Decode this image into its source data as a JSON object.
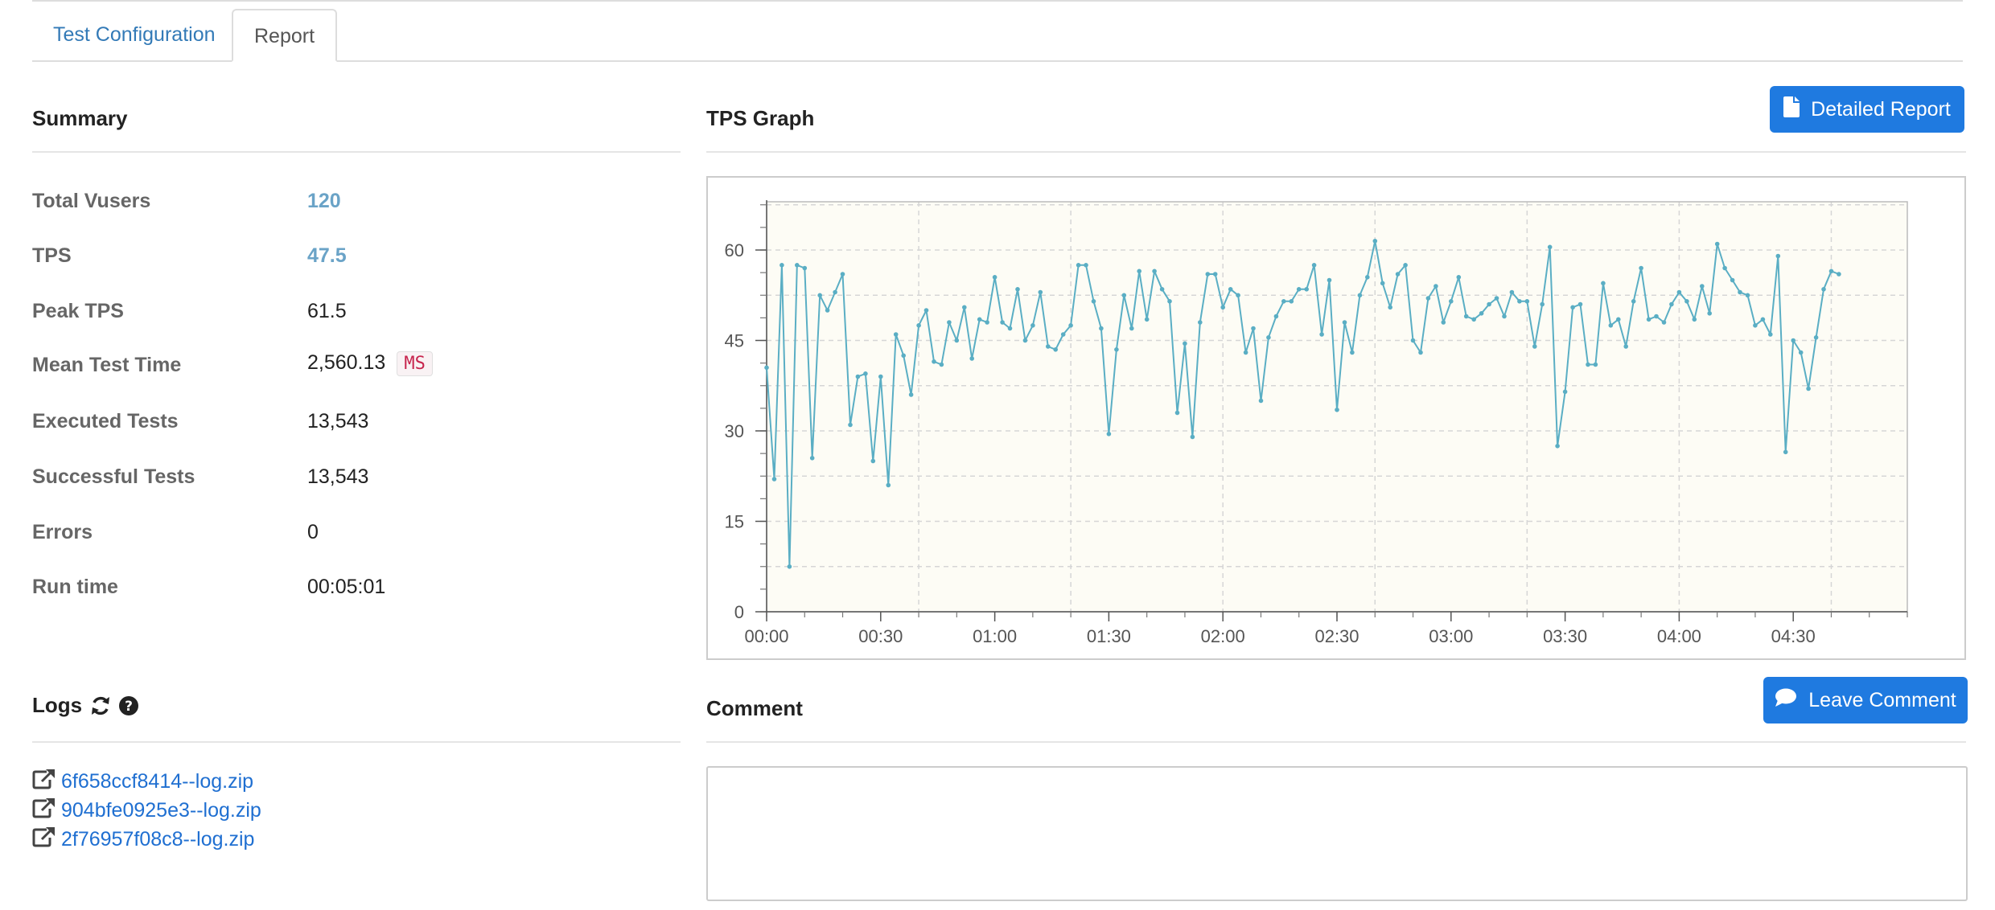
{
  "tabs": {
    "config_label": "Test Configuration",
    "report_label": "Report"
  },
  "summary": {
    "title": "Summary",
    "total_vusers_label": "Total Vusers",
    "total_vusers": "120",
    "tps_label": "TPS",
    "tps": "47.5",
    "peak_tps_label": "Peak TPS",
    "peak_tps": "61.5",
    "mean_test_time_label": "Mean Test Time",
    "mean_test_time": "2,560.13",
    "mean_test_time_unit": "MS",
    "executed_tests_label": "Executed Tests",
    "executed_tests": "13,543",
    "successful_tests_label": "Successful Tests",
    "successful_tests": "13,543",
    "errors_label": "Errors",
    "errors": "0",
    "run_time_label": "Run time",
    "run_time": "00:05:01"
  },
  "tps_graph": {
    "title": "TPS Graph",
    "detailed_report_label": "Detailed Report"
  },
  "logs": {
    "title": "Logs",
    "files": [
      "6f658ccf8414--log.zip",
      "904bfe0925e3--log.zip",
      "2f76957f08c8--log.zip"
    ]
  },
  "comment": {
    "title": "Comment",
    "leave_comment_label": "Leave Comment",
    "value": ""
  },
  "colors": {
    "accent": "#1f7ae0",
    "link": "#337ab7",
    "highlight_value": "#6aa3c7",
    "series_line": "#5aaec4",
    "plot_background": "#fdfcf5"
  },
  "icons": {
    "detailed_report": "file-icon",
    "leave_comment": "speech-bubble-icon",
    "logs_refresh": "refresh-icon",
    "logs_help": "question-circle-icon",
    "log_link": "external-link-icon"
  },
  "chart_data": {
    "type": "line",
    "xlabel": "",
    "ylabel": "",
    "ylim": [
      0,
      68
    ],
    "xlim": [
      0,
      300
    ],
    "x_step_seconds": 2,
    "x_ticks": [
      "00:00",
      "00:30",
      "01:00",
      "01:30",
      "02:00",
      "02:30",
      "03:00",
      "03:30",
      "04:00",
      "04:30"
    ],
    "y_ticks": [
      "0",
      "15",
      "30",
      "45",
      "60"
    ],
    "grid": true,
    "legend": "none",
    "series": [
      {
        "values": [
          40.5,
          22,
          57.5,
          7.5,
          57.5,
          57,
          25.5,
          52.5,
          50,
          53,
          56,
          31,
          39,
          39.5,
          25,
          39,
          21,
          46,
          42.5,
          36,
          47.5,
          50,
          41.5,
          41,
          48,
          45,
          50.5,
          42,
          48.5,
          48,
          55.5,
          48,
          47,
          53.5,
          45,
          47.5,
          53,
          44,
          43.5,
          46,
          47.5,
          57.5,
          57.5,
          51.5,
          47,
          29.5,
          43.5,
          52.5,
          47,
          56.5,
          48.5,
          56.5,
          53.5,
          51.5,
          33,
          44.5,
          29,
          48,
          56,
          56,
          50.5,
          53.5,
          52.5,
          43,
          47,
          35,
          45.5,
          49,
          51.5,
          51.5,
          53.5,
          53.5,
          57.5,
          46,
          55,
          33.5,
          48,
          43,
          52.5,
          55.5,
          61.5,
          54.5,
          50.5,
          56,
          57.5,
          45,
          43,
          52,
          54,
          48,
          51.5,
          55.5,
          49,
          48.5,
          49.5,
          51,
          52,
          49,
          53,
          51.5,
          51.5,
          44,
          51,
          60.5,
          27.5,
          36.5,
          50.5,
          51,
          41,
          41,
          54.5,
          47.5,
          48.5,
          44,
          51.5,
          57,
          48.5,
          49,
          48,
          51,
          53,
          51.5,
          48.5,
          54,
          49.5,
          61,
          57,
          55,
          53,
          52.5,
          47.5,
          48.5,
          46,
          59,
          26.5,
          45,
          43,
          37,
          45.5,
          53.5,
          56.5,
          56
        ]
      }
    ]
  }
}
